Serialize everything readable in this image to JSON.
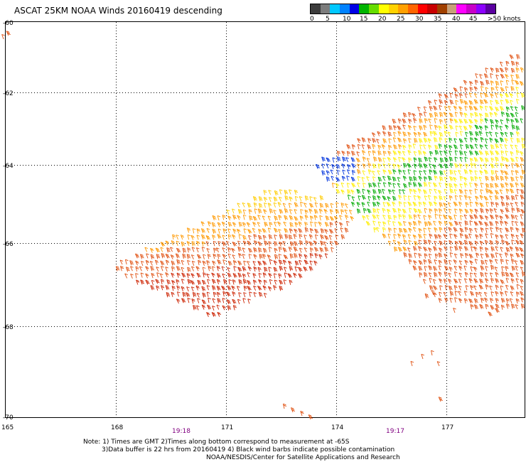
{
  "title": "ASCAT 25KM NOAA Winds 20160419 descending",
  "legend": {
    "labels": [
      "0",
      "5",
      "10",
      "15",
      "20",
      "25",
      "30",
      "35",
      "40",
      "45",
      ">50 knots"
    ],
    "colors": [
      "#3c3c3c",
      "#7c7c7c",
      "#00c8ff",
      "#0082ff",
      "#0000e6",
      "#00b400",
      "#66dd00",
      "#ffff00",
      "#ffd200",
      "#ffa000",
      "#ff6400",
      "#ff0000",
      "#c80000",
      "#a04000",
      "#c8a078",
      "#ff00ff",
      "#c800c8",
      "#8c00ff",
      "#5a00a0"
    ]
  },
  "axes": {
    "lat_labels": [
      "-60",
      "-62",
      "-64",
      "-66",
      "-68",
      "-70"
    ],
    "lon_labels": [
      "165",
      "168",
      "171",
      "174",
      "177"
    ]
  },
  "time_labels": [
    "19:18",
    "19:17"
  ],
  "notes": {
    "line1": "Note: 1) Times are GMT 2)Times along bottom correspond to measurement at -65S",
    "line2": "3)Data buffer is 22 hrs from 20160419 4) Black wind barbs indicate possible contamination",
    "line3": "NOAA/NESDIS/Center for Satellite Applications and Research"
  },
  "colors": {
    "red": "#cc2200",
    "orange_red": "#e05010",
    "orange": "#ff9900",
    "yellow_orange": "#ffcc00",
    "yellow": "#ffee00",
    "green": "#00aa00",
    "blue": "#0033dd",
    "purple_label": "#800080"
  }
}
